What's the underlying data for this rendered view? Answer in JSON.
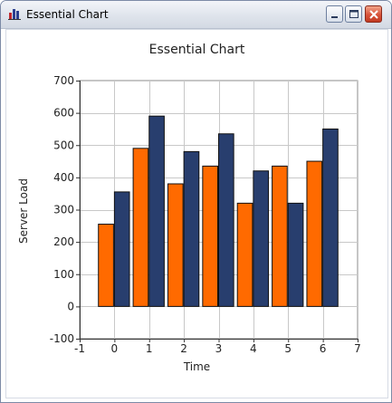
{
  "window": {
    "title": "Essential Chart"
  },
  "icons": {
    "app": "bar-chart-icon",
    "minimize": "minimize-icon",
    "maximize": "maximize-icon",
    "close": "close-icon"
  },
  "colors": {
    "series_a": "#ff6a00",
    "series_b": "#283e6e",
    "grid": "#c8c8c8"
  },
  "chart_data": {
    "type": "bar",
    "title": "Essential Chart",
    "xlabel": "Time",
    "ylabel": "Server Load",
    "x": [
      0,
      1,
      2,
      3,
      4,
      5,
      6
    ],
    "series": [
      {
        "values": [
          255,
          490,
          380,
          435,
          320,
          435,
          450
        ]
      },
      {
        "values": [
          355,
          590,
          480,
          535,
          420,
          320,
          550
        ]
      }
    ],
    "xlim": [
      -1,
      7
    ],
    "ylim": [
      -100,
      700
    ],
    "xticks": [
      -1,
      0,
      1,
      2,
      3,
      4,
      5,
      6,
      7
    ],
    "yticks": [
      -100,
      0,
      100,
      200,
      300,
      400,
      500,
      600,
      700
    ],
    "grid": true
  }
}
